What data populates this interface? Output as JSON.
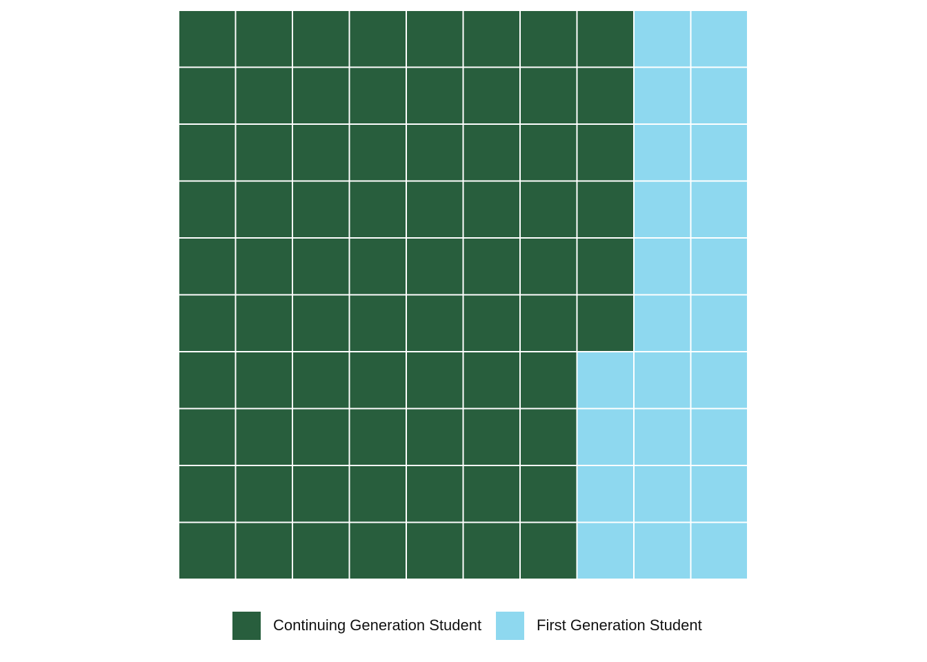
{
  "chart_data": {
    "type": "waffle",
    "title": "",
    "rows": 10,
    "columns": 10,
    "fill_order": "column-major from left, top to bottom",
    "series": [
      {
        "name": "Continuing Generation Student",
        "value": 76,
        "color": "#285e3d"
      },
      {
        "name": "First Generation Student",
        "value": 24,
        "color": "#8ed8ef"
      }
    ],
    "total": 100,
    "grid_line_color": "#ffffff",
    "legend_position": "bottom"
  }
}
